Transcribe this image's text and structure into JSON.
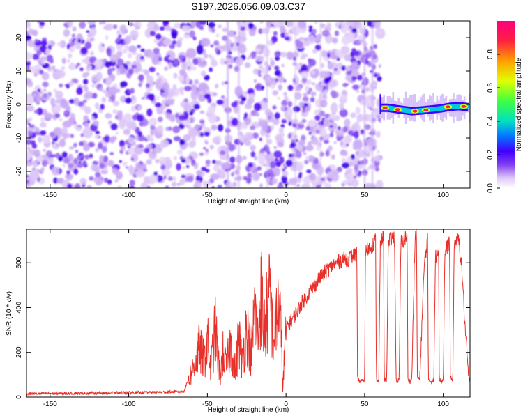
{
  "figure": {
    "title": "S197.2026.056.09.03.C37"
  },
  "chart_data": [
    {
      "type": "heatmap",
      "xlabel": "Height of straight line (km)",
      "ylabel": "Frequency (Hz)",
      "xlim": [
        -165,
        117
      ],
      "ylim": [
        -25,
        25
      ],
      "x_ticks": [
        -150,
        -100,
        -50,
        0,
        50,
        100
      ],
      "y_ticks": [
        -20,
        -10,
        0,
        10,
        20
      ],
      "noise_region_x": [
        -165,
        60
      ],
      "signal_start_x": 60,
      "signal_track": [
        [
          60,
          -1
        ],
        [
          65,
          -1
        ],
        [
          72,
          -1.5
        ],
        [
          80,
          -2
        ],
        [
          86,
          -1.8
        ],
        [
          92,
          -1.5
        ],
        [
          98,
          -1.2
        ],
        [
          104,
          -0.7
        ],
        [
          110,
          -0.5
        ],
        [
          116,
          -0.8
        ]
      ],
      "colorbar": {
        "label": "Normalized spectral amplitude",
        "range": [
          0,
          1
        ],
        "ticks": [
          0.0,
          0.2,
          0.4,
          0.6,
          0.8
        ],
        "tick_labels": [
          "0.0",
          "0.2",
          "0.4",
          "0.6",
          "0.8"
        ],
        "colors": [
          "#ffffff",
          "#e0c8f8",
          "#8040f0",
          "#4000ff",
          "#0080ff",
          "#00e0c0",
          "#40ff40",
          "#e0ff00",
          "#ffa000",
          "#ff2040"
        ]
      }
    },
    {
      "type": "line",
      "xlabel": "Height of straight line (km)",
      "ylabel": "SNR (10 * v/v)",
      "xlim": [
        -165,
        117
      ],
      "ylim": [
        0,
        750
      ],
      "x_ticks": [
        -150,
        -100,
        -50,
        0,
        50,
        100
      ],
      "y_ticks": [
        0,
        200,
        400,
        600
      ],
      "color": "#e8302a",
      "series": [
        {
          "name": "SNR",
          "x": [
            -165,
            -120,
            -80,
            -65,
            -62,
            -58,
            -55,
            -52,
            -50,
            -48,
            -45,
            -42,
            -40,
            -38,
            -35,
            -32,
            -30,
            -28,
            -25,
            -22,
            -20,
            -18,
            -16,
            -14,
            -12,
            -10,
            -8,
            -6,
            -4,
            -2,
            0,
            5,
            10,
            15,
            20,
            25,
            30,
            35,
            40,
            45,
            45.5,
            47,
            50,
            50.5,
            55,
            57,
            57.5,
            59,
            60,
            62,
            62.5,
            64,
            65,
            66,
            69,
            70,
            70.5,
            72,
            73,
            76,
            77,
            77.5,
            79,
            80,
            82,
            83,
            83.5,
            85,
            88,
            89,
            90,
            90.5,
            92,
            94,
            95,
            97,
            97.5,
            99,
            100,
            101,
            104,
            104.5,
            106,
            107,
            110,
            112,
            113,
            114,
            115,
            116,
            117
          ],
          "y": [
            15,
            18,
            22,
            25,
            80,
            150,
            220,
            160,
            260,
            120,
            300,
            90,
            200,
            130,
            240,
            110,
            280,
            150,
            320,
            180,
            400,
            250,
            480,
            300,
            380,
            450,
            260,
            350,
            420,
            40,
            310,
            360,
            420,
            470,
            520,
            560,
            590,
            610,
            620,
            640,
            80,
            70,
            75,
            650,
            680,
            700,
            80,
            70,
            680,
            720,
            80,
            75,
            660,
            700,
            720,
            80,
            72,
            75,
            690,
            710,
            720,
            80,
            70,
            85,
            700,
            730,
            90,
            78,
            600,
            650,
            720,
            80,
            70,
            75,
            620,
            680,
            80,
            72,
            75,
            640,
            700,
            90,
            70,
            690,
            700,
            560,
            420,
            300,
            200,
            100,
            60
          ]
        }
      ]
    }
  ]
}
